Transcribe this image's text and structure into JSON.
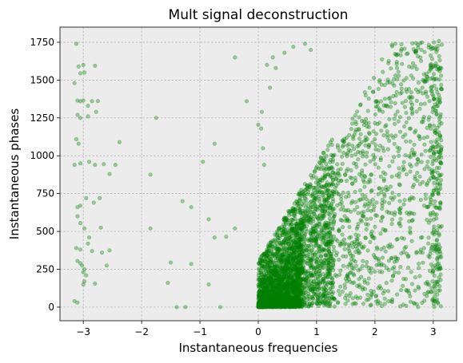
{
  "chart_data": {
    "type": "scatter",
    "title": "Mult signal deconstruction",
    "xlabel": "Instantaneous frequencies",
    "ylabel": "Instantaneous phases",
    "xlim": [
      -3.4,
      3.4
    ],
    "ylim": [
      -90,
      1850
    ],
    "xticks": [
      -3,
      -2,
      -1,
      0,
      1,
      2,
      3
    ],
    "yticks": [
      0,
      250,
      500,
      750,
      1000,
      1250,
      1500,
      1750
    ],
    "grid": true,
    "legend": "none",
    "colors": {
      "marker": "#008000",
      "marker_alpha": 0.35,
      "plot_bg": "#ececec"
    },
    "points": [
      [
        -3.12,
        1740
      ],
      [
        -3.08,
        1590
      ],
      [
        -3.05,
        1545
      ],
      [
        -2.98,
        1550
      ],
      [
        -3.0,
        1600
      ],
      [
        -2.8,
        1595
      ],
      [
        -3.15,
        1480
      ],
      [
        -3.1,
        1365
      ],
      [
        -3.05,
        1360
      ],
      [
        -3.0,
        1365
      ],
      [
        -2.92,
        1330
      ],
      [
        -2.85,
        1360
      ],
      [
        -2.75,
        1362
      ],
      [
        -3.1,
        1270
      ],
      [
        -3.05,
        1250
      ],
      [
        -2.92,
        1260
      ],
      [
        -2.78,
        1290
      ],
      [
        -3.12,
        1110
      ],
      [
        -3.08,
        1080
      ],
      [
        -3.15,
        940
      ],
      [
        -3.05,
        950
      ],
      [
        -2.9,
        960
      ],
      [
        -2.8,
        940
      ],
      [
        -2.65,
        945
      ],
      [
        -2.55,
        880
      ],
      [
        -2.45,
        940
      ],
      [
        -2.38,
        1090
      ],
      [
        -3.1,
        660
      ],
      [
        -3.05,
        670
      ],
      [
        -2.95,
        720
      ],
      [
        -2.82,
        690
      ],
      [
        -2.72,
        720
      ],
      [
        -3.1,
        600
      ],
      [
        -3.05,
        555
      ],
      [
        -2.98,
        520
      ],
      [
        -2.9,
        460
      ],
      [
        -2.7,
        525
      ],
      [
        -2.55,
        375
      ],
      [
        -3.12,
        390
      ],
      [
        -3.05,
        380
      ],
      [
        -2.92,
        420
      ],
      [
        -2.85,
        370
      ],
      [
        -2.68,
        360
      ],
      [
        -3.1,
        305
      ],
      [
        -3.05,
        290
      ],
      [
        -3.02,
        275
      ],
      [
        -2.98,
        250
      ],
      [
        -3.0,
        230
      ],
      [
        -2.95,
        210
      ],
      [
        -2.6,
        275
      ],
      [
        -2.98,
        170
      ],
      [
        -3.0,
        150
      ],
      [
        -2.8,
        155
      ],
      [
        -3.15,
        40
      ],
      [
        -3.1,
        30
      ],
      [
        -1.75,
        1250
      ],
      [
        -1.85,
        875
      ],
      [
        -1.85,
        520
      ],
      [
        -1.55,
        160
      ],
      [
        -1.5,
        295
      ],
      [
        -1.15,
        285
      ],
      [
        -1.3,
        700
      ],
      [
        -1.15,
        660
      ],
      [
        -0.85,
        580
      ],
      [
        -0.75,
        1080
      ],
      [
        -0.75,
        460
      ],
      [
        -0.55,
        465
      ],
      [
        -0.4,
        1650
      ],
      [
        -0.4,
        520
      ],
      [
        -0.2,
        1360
      ],
      [
        -0.85,
        150
      ],
      [
        -0.95,
        960
      ],
      [
        -0.65,
        0
      ],
      [
        -1.4,
        0
      ],
      [
        -1.25,
        0
      ],
      [
        0.0,
        1205
      ],
      [
        0.05,
        1180
      ],
      [
        0.08,
        1050
      ],
      [
        0.1,
        940
      ],
      [
        0.06,
        1290
      ],
      [
        0.2,
        1450
      ],
      [
        0.25,
        1650
      ],
      [
        0.3,
        1580
      ],
      [
        0.15,
        1600
      ],
      [
        0.45,
        1680
      ],
      [
        0.6,
        1720
      ],
      [
        0.8,
        1740
      ],
      [
        0.9,
        1700
      ]
    ]
  }
}
